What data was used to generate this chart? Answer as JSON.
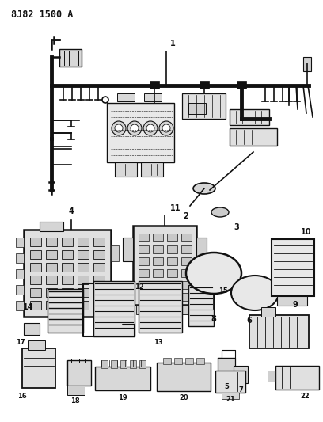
{
  "title": "8J82 1500 A",
  "bg_color": "#ffffff",
  "line_color": "#111111",
  "title_fontsize": 8.5,
  "label_fontsize": 7,
  "figsize": [
    4.08,
    5.33
  ],
  "dpi": 100
}
